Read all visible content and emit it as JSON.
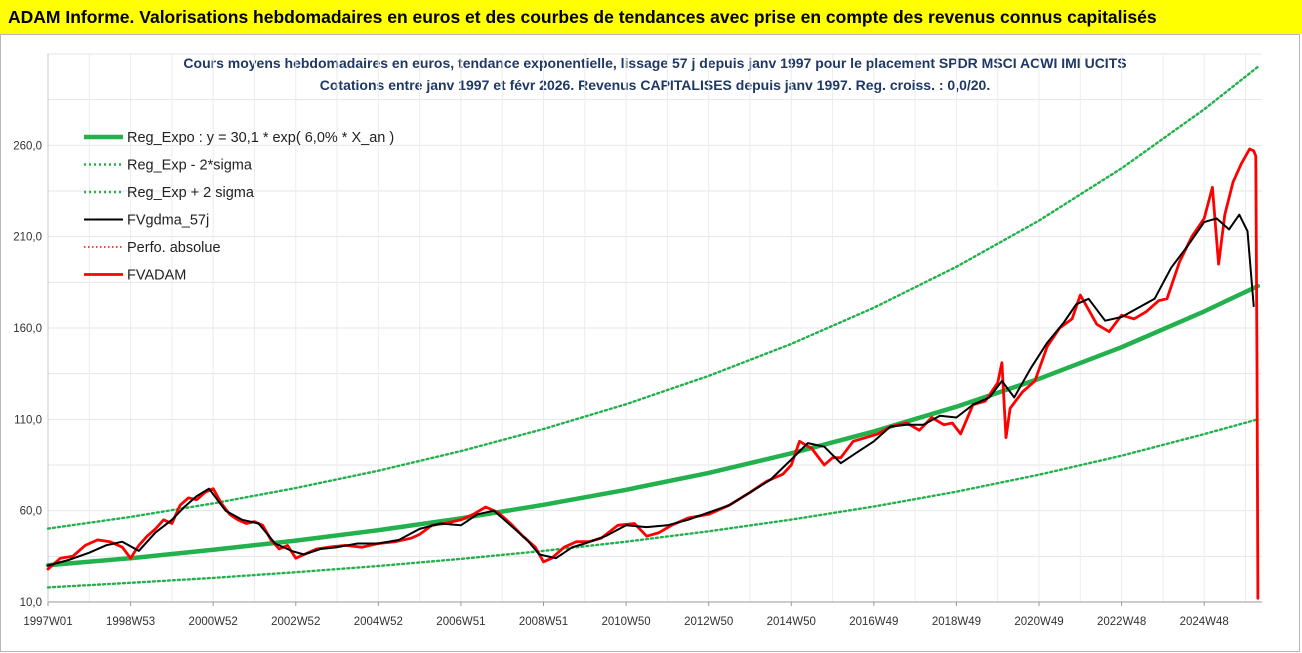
{
  "header": {
    "title": "ADAM Informe. Valorisations hebdomadaires en euros et des courbes de tendances avec prise en compte des revenus connus capitalisés"
  },
  "chart_data": {
    "type": "line",
    "title_lines": [
      "Cours moyens hebdomadaires en euros, tendance exponentielle, lissage 57 j depuis janv 1997 pour le placement SPDR MSCI ACWI IMI UCITS",
      "Cotations entre janv 1997 et févr 2026. Revenus CAPITALISES depuis janv 1997. Reg. croiss. : 0,0/20."
    ],
    "xlabel": "",
    "ylabel": "",
    "ylim": [
      10,
      310
    ],
    "xlim": [
      1997.0,
      2026.4
    ],
    "y_ticks": [
      10,
      60,
      110,
      160,
      210,
      260
    ],
    "y_tick_labels": [
      "10,0",
      "60,0",
      "110,0",
      "160,0",
      "210,0",
      "260,0"
    ],
    "x_tick_labels": [
      {
        "label": "1997W01",
        "x": 1997.0
      },
      {
        "label": "1998W53",
        "x": 1999.0
      },
      {
        "label": "2000W52",
        "x": 2001.0
      },
      {
        "label": "2002W52",
        "x": 2003.0
      },
      {
        "label": "2004W52",
        "x": 2005.0
      },
      {
        "label": "2006W51",
        "x": 2007.0
      },
      {
        "label": "2008W51",
        "x": 2009.0
      },
      {
        "label": "2010W50",
        "x": 2011.0
      },
      {
        "label": "2012W50",
        "x": 2013.0
      },
      {
        "label": "2014W50",
        "x": 2015.0
      },
      {
        "label": "2016W49",
        "x": 2017.0
      },
      {
        "label": "2018W49",
        "x": 2019.0
      },
      {
        "label": "2020W49",
        "x": 2021.0
      },
      {
        "label": "2022W48",
        "x": 2023.0
      },
      {
        "label": "2024W48",
        "x": 2025.0
      }
    ],
    "grid": true,
    "legend_position": "top-left",
    "series": [
      {
        "name": "Reg_Expo : y = 30,1 * exp( 6,0% *  X_an )",
        "color": "#22b14c",
        "style": "solid-thick",
        "x": [
          1997.0,
          1999.0,
          2001.0,
          2003.0,
          2005.0,
          2007.0,
          2009.0,
          2011.0,
          2013.0,
          2015.0,
          2017.0,
          2019.0,
          2021.0,
          2023.0,
          2025.0,
          2026.3
        ],
        "y": [
          30.1,
          34.0,
          38.6,
          43.6,
          49.3,
          55.8,
          63.2,
          71.4,
          80.7,
          91.4,
          103.4,
          116.9,
          132.2,
          149.5,
          169.1,
          183.0
        ]
      },
      {
        "name": "Reg_Exp - 2*sigma",
        "color": "#22b14c",
        "style": "dotted",
        "x": [
          1997.0,
          1999.0,
          2001.0,
          2003.0,
          2005.0,
          2007.0,
          2009.0,
          2011.0,
          2013.0,
          2015.0,
          2017.0,
          2019.0,
          2021.0,
          2023.0,
          2025.0,
          2026.3
        ],
        "y": [
          18.0,
          20.5,
          23.2,
          26.3,
          29.7,
          33.6,
          38.0,
          43.0,
          48.7,
          55.1,
          62.3,
          70.4,
          79.7,
          90.1,
          101.9,
          110.0
        ]
      },
      {
        "name": "Reg_Exp + 2 sigma",
        "color": "#22b14c",
        "style": "dotted",
        "x": [
          1997.0,
          1999.0,
          2001.0,
          2003.0,
          2005.0,
          2007.0,
          2009.0,
          2011.0,
          2013.0,
          2015.0,
          2017.0,
          2019.0,
          2021.0,
          2023.0,
          2025.0,
          2026.3
        ],
        "y": [
          50.2,
          56.6,
          64.0,
          72.4,
          81.9,
          92.6,
          104.7,
          118.3,
          133.8,
          151.3,
          171.1,
          193.5,
          218.8,
          247.4,
          279.7,
          303.0
        ]
      },
      {
        "name": "FVgdma_57j",
        "color": "#000000",
        "style": "solid",
        "x": [
          1997.0,
          1997.5,
          1998.0,
          1998.4,
          1998.8,
          1999.2,
          1999.6,
          2000.0,
          2000.3,
          2000.6,
          2000.9,
          2001.3,
          2001.7,
          2002.1,
          2002.5,
          2002.9,
          2003.2,
          2003.6,
          2004.0,
          2004.5,
          2005.0,
          2005.5,
          2006.0,
          2006.5,
          2007.0,
          2007.4,
          2007.8,
          2008.2,
          2008.6,
          2008.9,
          2009.3,
          2009.7,
          2010.0,
          2010.5,
          2011.0,
          2011.5,
          2012.0,
          2012.5,
          2013.0,
          2013.5,
          2014.0,
          2014.5,
          2015.0,
          2015.4,
          2015.8,
          2016.2,
          2016.6,
          2017.0,
          2017.4,
          2017.8,
          2018.2,
          2018.6,
          2019.0,
          2019.4,
          2019.8,
          2020.1,
          2020.4,
          2020.8,
          2021.2,
          2021.6,
          2021.9,
          2022.2,
          2022.6,
          2023.0,
          2023.4,
          2023.8,
          2024.2,
          2024.6,
          2025.0,
          2025.3,
          2025.6,
          2025.85,
          2026.05,
          2026.2
        ],
        "y": [
          30.0,
          33.0,
          37.0,
          41.0,
          43.0,
          38.0,
          48.0,
          55.0,
          62.0,
          68.0,
          72.0,
          60.0,
          55.0,
          53.0,
          42.0,
          38.0,
          36.0,
          39.0,
          40.0,
          42.0,
          42.0,
          44.0,
          50.0,
          53.0,
          52.0,
          58.0,
          60.0,
          52.0,
          44.0,
          36.0,
          34.0,
          40.0,
          42.0,
          46.0,
          52.0,
          51.0,
          52.0,
          55.0,
          59.0,
          63.0,
          70.0,
          77.0,
          88.0,
          97.0,
          95.0,
          86.0,
          92.0,
          98.0,
          106.0,
          107.0,
          107.0,
          112.0,
          111.0,
          118.0,
          122.0,
          131.0,
          122.0,
          138.0,
          152.0,
          163.0,
          173.0,
          176.0,
          164.0,
          166.0,
          171.0,
          176.0,
          193.0,
          205.0,
          218.0,
          220.0,
          214.0,
          222.0,
          213.0,
          172.0
        ]
      },
      {
        "name": "Perfo. absolue",
        "color": "#ff0000",
        "style": "dotted-thin",
        "x": [],
        "y": []
      },
      {
        "name": "FVADAM",
        "color": "#ff0000",
        "style": "solid-thick",
        "x": [
          1997.0,
          1997.3,
          1997.6,
          1997.9,
          1998.2,
          1998.5,
          1998.8,
          1999.0,
          1999.2,
          1999.4,
          1999.6,
          1999.8,
          2000.0,
          2000.2,
          2000.4,
          2000.6,
          2000.8,
          2001.0,
          2001.2,
          2001.4,
          2001.6,
          2001.8,
          2002.0,
          2002.2,
          2002.4,
          2002.6,
          2002.8,
          2003.0,
          2003.2,
          2003.5,
          2003.8,
          2004.2,
          2004.6,
          2005.0,
          2005.4,
          2005.8,
          2006.0,
          2006.3,
          2006.6,
          2007.0,
          2007.3,
          2007.6,
          2007.9,
          2008.2,
          2008.5,
          2008.8,
          2009.0,
          2009.2,
          2009.5,
          2009.8,
          2010.1,
          2010.4,
          2010.8,
          2011.2,
          2011.5,
          2011.8,
          2012.1,
          2012.5,
          2013.0,
          2013.5,
          2014.0,
          2014.4,
          2014.8,
          2015.0,
          2015.2,
          2015.5,
          2015.8,
          2016.0,
          2016.2,
          2016.5,
          2016.8,
          2017.1,
          2017.4,
          2017.8,
          2018.1,
          2018.4,
          2018.7,
          2018.9,
          2019.1,
          2019.4,
          2019.7,
          2020.0,
          2020.1,
          2020.2,
          2020.3,
          2020.6,
          2020.9,
          2021.2,
          2021.5,
          2021.8,
          2022.0,
          2022.2,
          2022.4,
          2022.7,
          2023.0,
          2023.3,
          2023.6,
          2023.9,
          2024.1,
          2024.4,
          2024.7,
          2025.0,
          2025.2,
          2025.35,
          2025.5,
          2025.7,
          2025.9,
          2026.1,
          2026.2,
          2026.25,
          2026.28,
          2026.3
        ],
        "y": [
          28.0,
          34.0,
          35.0,
          41.0,
          44.0,
          43.0,
          40.0,
          34.0,
          41.0,
          46.0,
          50.0,
          55.0,
          53.0,
          63.0,
          67.0,
          66.0,
          70.0,
          72.0,
          64.0,
          58.0,
          55.0,
          53.0,
          54.0,
          52.0,
          44.0,
          39.0,
          41.0,
          34.0,
          36.0,
          39.0,
          40.0,
          41.0,
          40.0,
          42.0,
          43.0,
          45.0,
          47.0,
          52.0,
          53.0,
          55.0,
          58.0,
          62.0,
          59.0,
          53.0,
          46.0,
          40.0,
          32.0,
          34.0,
          40.0,
          43.0,
          43.0,
          45.0,
          52.0,
          53.0,
          46.0,
          48.0,
          52.0,
          56.0,
          58.0,
          63.0,
          70.0,
          76.0,
          80.0,
          85.0,
          98.0,
          94.0,
          85.0,
          89.0,
          89.0,
          98.0,
          100.0,
          102.0,
          106.0,
          108.0,
          104.0,
          111.0,
          107.0,
          108.0,
          102.0,
          118.0,
          120.0,
          130.0,
          141.0,
          100.0,
          116.0,
          125.0,
          131.0,
          150.0,
          160.0,
          165.0,
          178.0,
          170.0,
          162.0,
          158.0,
          167.0,
          165.0,
          169.0,
          175.0,
          176.0,
          196.0,
          210.0,
          220.0,
          237.0,
          195.0,
          222.0,
          240.0,
          250.0,
          258.0,
          257.0,
          254.0,
          140.0,
          12.0
        ]
      }
    ]
  }
}
